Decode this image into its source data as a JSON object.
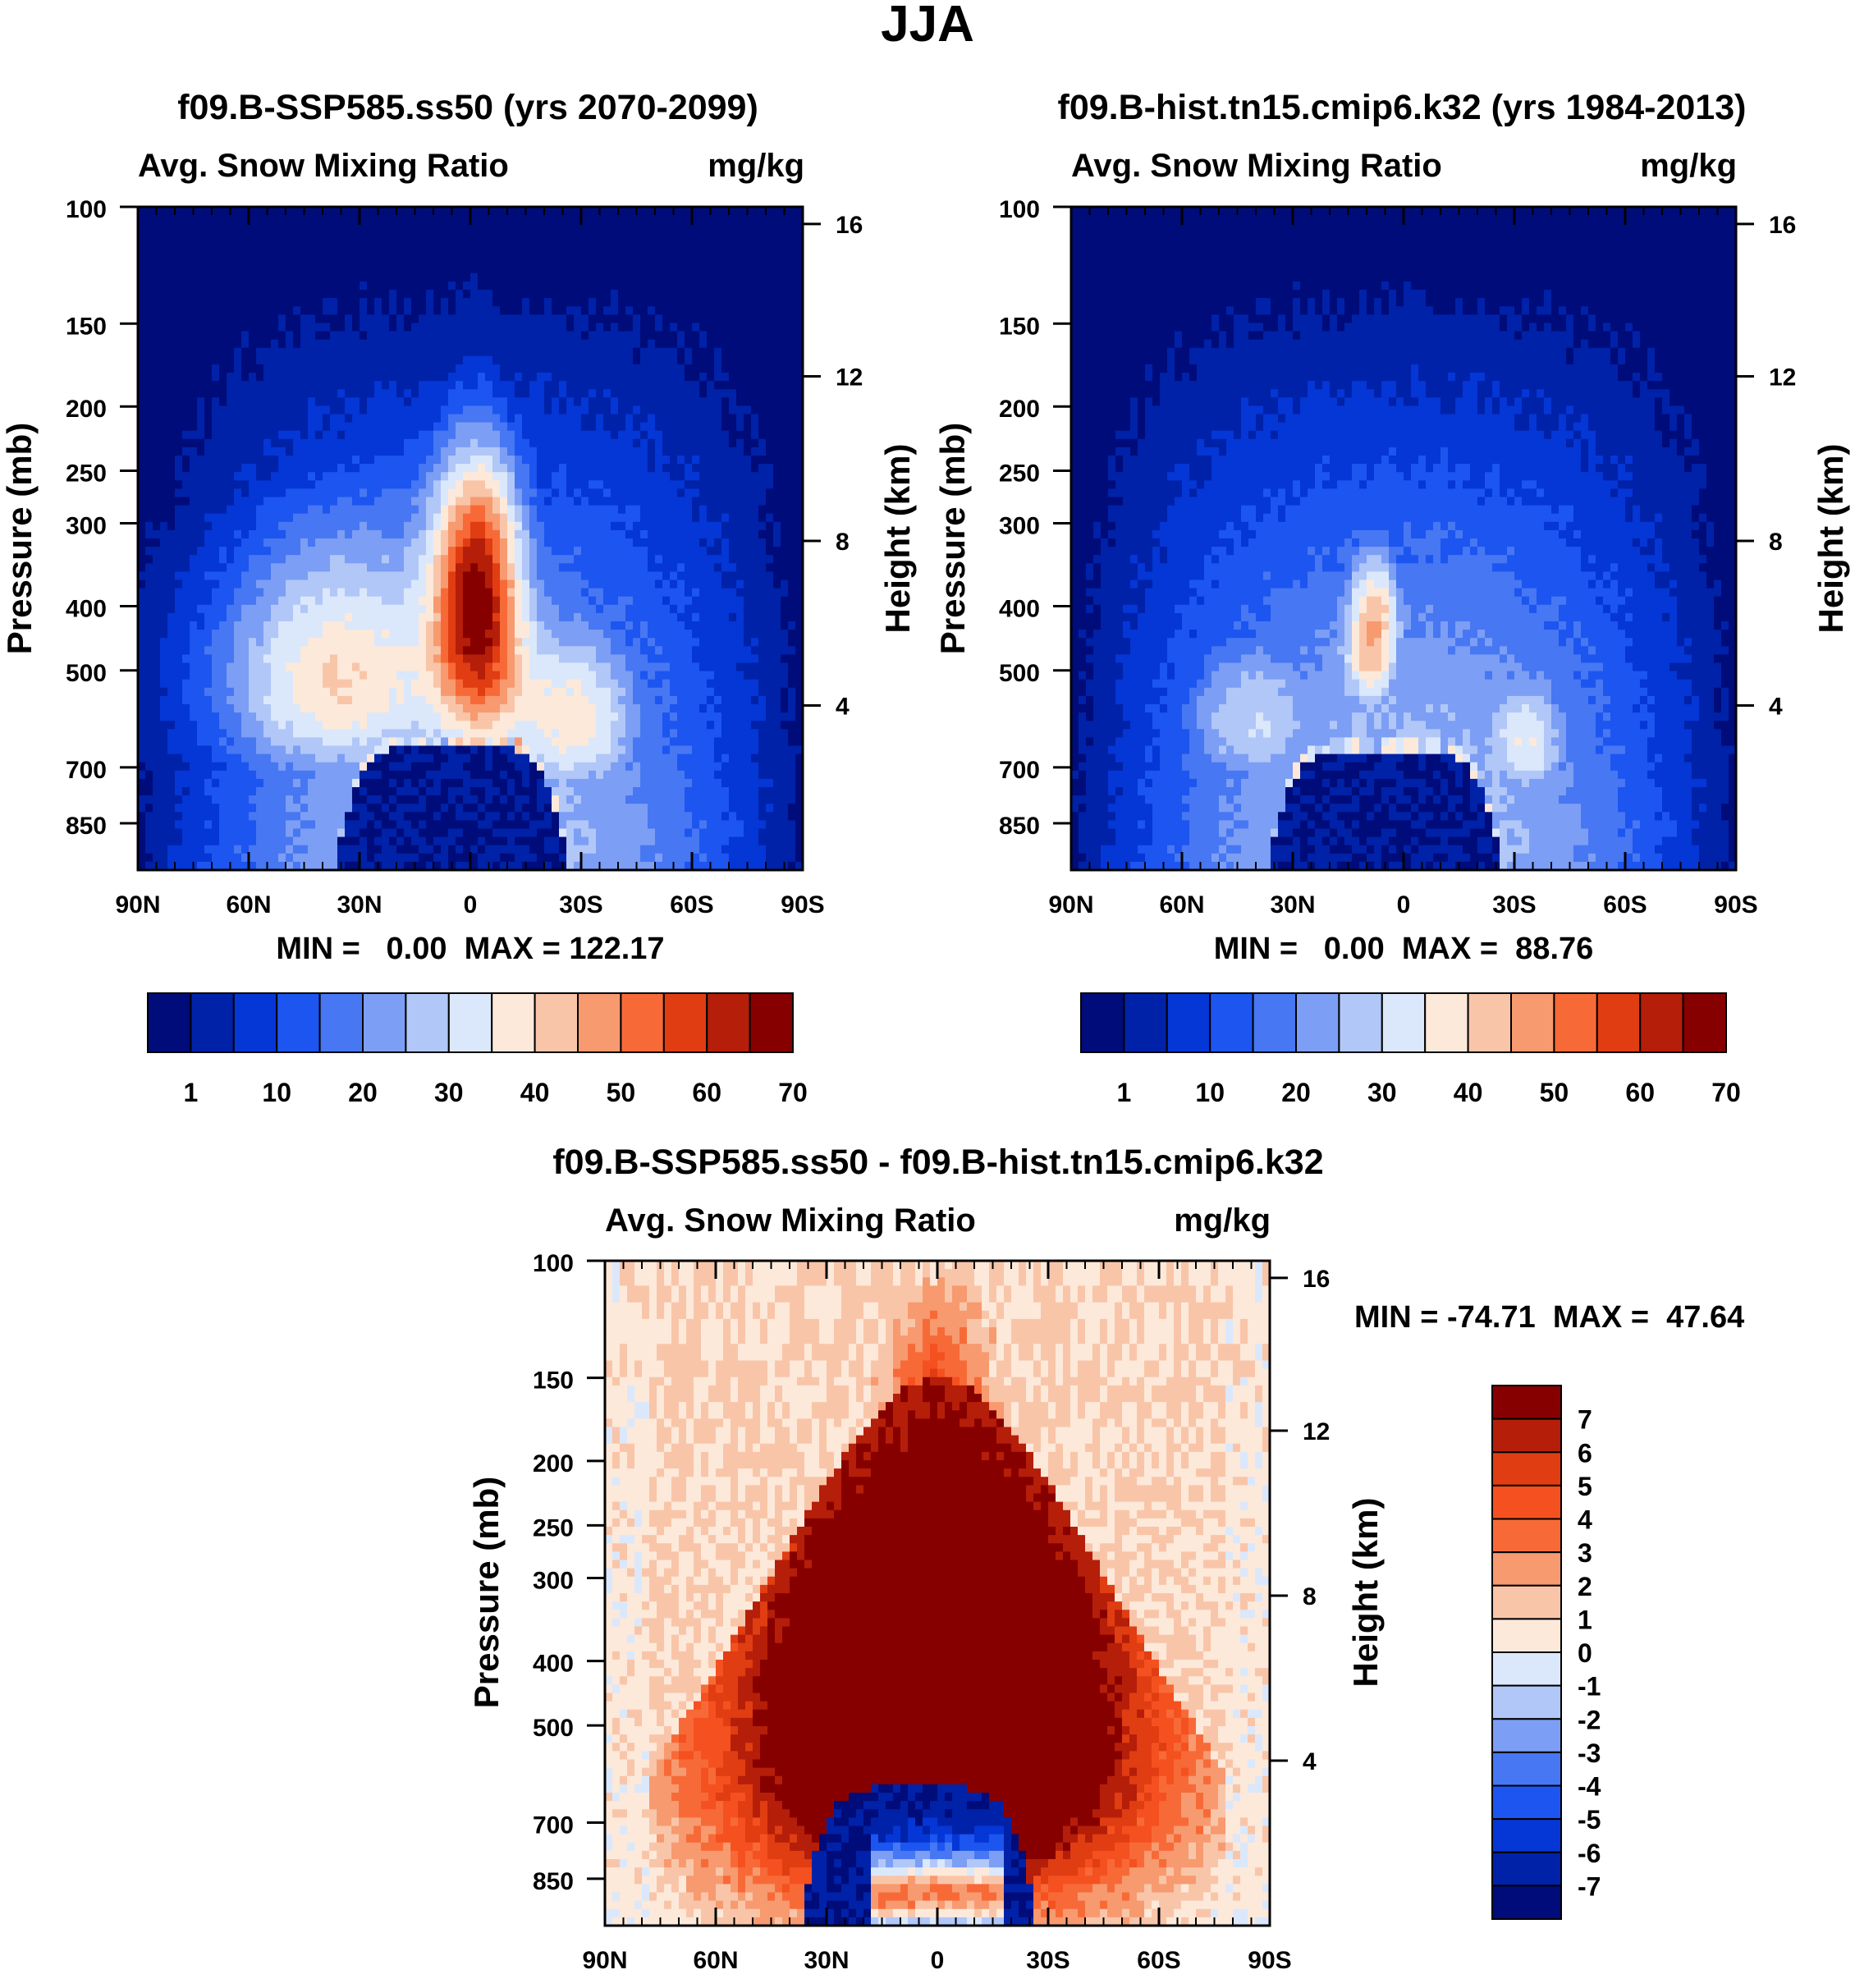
{
  "figure_title": "JJA",
  "colormap": {
    "cmap15": [
      "#000c7a",
      "#0022a8",
      "#0536d6",
      "#1c55f0",
      "#4777f2",
      "#7c9ef4",
      "#b1c7f8",
      "#dbe8fb",
      "#fce9da",
      "#f9c5a9",
      "#f79a6f",
      "#f76a38",
      "#e03d12",
      "#b51e09",
      "#870000"
    ],
    "cmap16": [
      "#000c7a",
      "#0022a8",
      "#0536d6",
      "#1c55f0",
      "#4777f2",
      "#7c9ef4",
      "#b1c7f8",
      "#dbe8fb",
      "#fce9da",
      "#f9c5a9",
      "#f79a6f",
      "#f76a38",
      "#f5501f",
      "#e03d12",
      "#b51e09",
      "#870000"
    ]
  },
  "chart_data": [
    {
      "type": "contour",
      "title": "f09.B-SSP585.ss50 (yrs 2070-2099)",
      "left_label": "Avg. Snow Mixing Ratio",
      "right_label": "mg/kg",
      "ylabel": "Pressure (mb)",
      "y2label": "Height (km)",
      "x_ticks": [
        "90N",
        "60N",
        "30N",
        "0",
        "30S",
        "60S",
        "90S"
      ],
      "x_range": [
        90,
        -90
      ],
      "y_ticks": [
        100,
        150,
        200,
        250,
        300,
        400,
        500,
        700,
        850
      ],
      "y_range": [
        100,
        1000
      ],
      "y2_ticks": [
        16,
        12,
        8,
        4
      ],
      "min_max": "MIN =   0.00  MAX = 122.17",
      "colorbar_labels": [
        "1",
        "10",
        "20",
        "30",
        "40",
        "50",
        "60",
        "70"
      ],
      "peak_value": 122.17,
      "field_kind": "full",
      "top_level": 220,
      "ground_level": 650,
      "field": {
        "background": 0,
        "blobs": [
          {
            "lat": -2,
            "p": 370,
            "sx": 12,
            "sy": 240,
            "amp": 11
          },
          {
            "lat": 35,
            "p": 520,
            "sx": 40,
            "sy": 260,
            "amp": 9
          },
          {
            "lat": -30,
            "p": 600,
            "sx": 22,
            "sy": 220,
            "amp": 8
          },
          {
            "lat": 0,
            "p": 180,
            "sx": 50,
            "sy": 170,
            "amp": 3
          }
        ],
        "ground_min": 0
      }
    },
    {
      "type": "contour",
      "title": "f09.B-hist.tn15.cmip6.k32 (yrs 1984-2013)",
      "left_label": "Avg. Snow Mixing Ratio",
      "right_label": "mg/kg",
      "ylabel": "Pressure (mb)",
      "y2label": "Height (km)",
      "x_ticks": [
        "90N",
        "60N",
        "30N",
        "0",
        "30S",
        "60S",
        "90S"
      ],
      "x_range": [
        90,
        -90
      ],
      "y_ticks": [
        100,
        150,
        200,
        250,
        300,
        400,
        500,
        700,
        850
      ],
      "y_range": [
        100,
        1000
      ],
      "y2_ticks": [
        16,
        12,
        8,
        4
      ],
      "min_max": "MIN =   0.00  MAX =  88.76",
      "colorbar_labels": [
        "1",
        "10",
        "20",
        "30",
        "40",
        "50",
        "60",
        "70"
      ],
      "peak_value": 88.76,
      "field_kind": "full",
      "top_level": 300,
      "ground_level": 660,
      "field": {
        "background": 0,
        "blobs": [
          {
            "lat": 8,
            "p": 430,
            "sx": 9,
            "sy": 160,
            "amp": 9
          },
          {
            "lat": 40,
            "p": 600,
            "sx": 26,
            "sy": 210,
            "amp": 7
          },
          {
            "lat": -33,
            "p": 640,
            "sx": 16,
            "sy": 190,
            "amp": 8
          },
          {
            "lat": 0,
            "p": 250,
            "sx": 50,
            "sy": 190,
            "amp": 2.5
          }
        ],
        "ground_min": 0
      }
    },
    {
      "type": "contour",
      "title": "f09.B-SSP585.ss50 - f09.B-hist.tn15.cmip6.k32",
      "left_label": "Avg. Snow Mixing Ratio",
      "right_label": "mg/kg",
      "ylabel": "Pressure (mb)",
      "y2label": "Height (km)",
      "x_ticks": [
        "90N",
        "60N",
        "30N",
        "0",
        "30S",
        "60S",
        "90S"
      ],
      "x_range": [
        90,
        -90
      ],
      "y_ticks": [
        100,
        150,
        200,
        250,
        300,
        400,
        500,
        700,
        850
      ],
      "y_range": [
        100,
        1000
      ],
      "y2_ticks": [
        16,
        12,
        8,
        4
      ],
      "min_max": "MIN = -74.71  MAX =  47.64",
      "colorbar_labels": [
        "7",
        "6",
        "5",
        "4",
        "3",
        "2",
        "1",
        "0",
        "-1",
        "-2",
        "-3",
        "-4",
        "-5",
        "-6",
        "-7"
      ],
      "peak_value": 47.64,
      "min_value": -74.71,
      "field_kind": "diff"
    }
  ]
}
